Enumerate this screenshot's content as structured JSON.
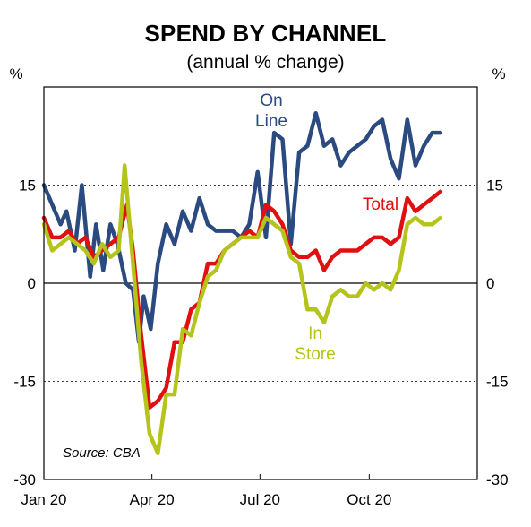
{
  "chart_data": {
    "type": "line",
    "title": "SPEND BY CHANNEL",
    "subtitle": "(annual % change)",
    "y_unit_left": "%",
    "y_unit_right": "%",
    "ylim": [
      -30,
      30
    ],
    "y_ticks": [
      15,
      0,
      -15,
      -30
    ],
    "y_tick_labels": [
      "15",
      "0",
      "-15",
      "-30"
    ],
    "x_range": [
      "2020-01-01",
      "2020-12-31"
    ],
    "x_ticks": [
      "2020-01-01",
      "2020-04-01",
      "2020-07-01",
      "2020-10-01"
    ],
    "x_tick_labels": [
      "Jan 20",
      "Apr 20",
      "Jul 20",
      "Oct 20"
    ],
    "source": "Source: CBA",
    "grid": "dotted horizontal",
    "series": [
      {
        "name": "On Line",
        "label_lines": [
          "On",
          "Line"
        ],
        "color": "#2a4a80",
        "points": [
          [
            "2020-01-01",
            15
          ],
          [
            "2020-01-08",
            12
          ],
          [
            "2020-01-15",
            9
          ],
          [
            "2020-01-20",
            11
          ],
          [
            "2020-01-27",
            5
          ],
          [
            "2020-02-02",
            15
          ],
          [
            "2020-02-09",
            1
          ],
          [
            "2020-02-14",
            9
          ],
          [
            "2020-02-20",
            2
          ],
          [
            "2020-02-26",
            9
          ],
          [
            "2020-03-03",
            6
          ],
          [
            "2020-03-10",
            0
          ],
          [
            "2020-03-16",
            -1
          ],
          [
            "2020-03-21",
            -9
          ],
          [
            "2020-03-25",
            -2
          ],
          [
            "2020-03-31",
            -7
          ],
          [
            "2020-04-06",
            3
          ],
          [
            "2020-04-13",
            9
          ],
          [
            "2020-04-20",
            6
          ],
          [
            "2020-04-27",
            11
          ],
          [
            "2020-05-04",
            8
          ],
          [
            "2020-05-11",
            13
          ],
          [
            "2020-05-18",
            9
          ],
          [
            "2020-05-25",
            8
          ],
          [
            "2020-06-01",
            8
          ],
          [
            "2020-06-08",
            8
          ],
          [
            "2020-06-15",
            7
          ],
          [
            "2020-06-22",
            9
          ],
          [
            "2020-06-29",
            17
          ],
          [
            "2020-07-06",
            7
          ],
          [
            "2020-07-13",
            23
          ],
          [
            "2020-07-20",
            22
          ],
          [
            "2020-07-27",
            6
          ],
          [
            "2020-08-03",
            20
          ],
          [
            "2020-08-10",
            21
          ],
          [
            "2020-08-17",
            26
          ],
          [
            "2020-08-24",
            21
          ],
          [
            "2020-08-31",
            22
          ],
          [
            "2020-09-07",
            18
          ],
          [
            "2020-09-14",
            20
          ],
          [
            "2020-09-21",
            21
          ],
          [
            "2020-09-28",
            22
          ],
          [
            "2020-10-05",
            24
          ],
          [
            "2020-10-12",
            25
          ],
          [
            "2020-10-19",
            19
          ],
          [
            "2020-10-26",
            16
          ],
          [
            "2020-11-02",
            25
          ],
          [
            "2020-11-09",
            18
          ],
          [
            "2020-11-16",
            21
          ],
          [
            "2020-11-23",
            23
          ],
          [
            "2020-11-30",
            23
          ]
        ]
      },
      {
        "name": "Total",
        "label_lines": [
          "Total"
        ],
        "color": "#e01010",
        "points": [
          [
            "2020-01-01",
            10
          ],
          [
            "2020-01-08",
            7
          ],
          [
            "2020-01-15",
            7
          ],
          [
            "2020-01-22",
            8
          ],
          [
            "2020-01-29",
            6
          ],
          [
            "2020-02-05",
            7
          ],
          [
            "2020-02-12",
            4
          ],
          [
            "2020-02-19",
            5
          ],
          [
            "2020-02-26",
            6
          ],
          [
            "2020-03-04",
            7
          ],
          [
            "2020-03-11",
            12
          ],
          [
            "2020-03-16",
            5
          ],
          [
            "2020-03-23",
            -8
          ],
          [
            "2020-03-30",
            -19
          ],
          [
            "2020-04-06",
            -18
          ],
          [
            "2020-04-13",
            -16
          ],
          [
            "2020-04-20",
            -9
          ],
          [
            "2020-04-27",
            -9
          ],
          [
            "2020-05-04",
            -4
          ],
          [
            "2020-05-11",
            -3
          ],
          [
            "2020-05-18",
            3
          ],
          [
            "2020-05-25",
            3
          ],
          [
            "2020-06-01",
            5
          ],
          [
            "2020-06-08",
            6
          ],
          [
            "2020-06-15",
            7
          ],
          [
            "2020-06-22",
            8
          ],
          [
            "2020-06-29",
            7
          ],
          [
            "2020-07-06",
            12
          ],
          [
            "2020-07-13",
            11
          ],
          [
            "2020-07-20",
            9
          ],
          [
            "2020-07-27",
            5
          ],
          [
            "2020-08-03",
            4
          ],
          [
            "2020-08-10",
            4
          ],
          [
            "2020-08-17",
            5
          ],
          [
            "2020-08-24",
            2
          ],
          [
            "2020-08-31",
            4
          ],
          [
            "2020-09-07",
            5
          ],
          [
            "2020-09-14",
            5
          ],
          [
            "2020-09-21",
            5
          ],
          [
            "2020-09-28",
            6
          ],
          [
            "2020-10-05",
            7
          ],
          [
            "2020-10-12",
            7
          ],
          [
            "2020-10-19",
            6
          ],
          [
            "2020-10-26",
            7
          ],
          [
            "2020-11-02",
            13
          ],
          [
            "2020-11-09",
            11
          ],
          [
            "2020-11-16",
            12
          ],
          [
            "2020-11-23",
            13
          ],
          [
            "2020-11-30",
            14
          ]
        ]
      },
      {
        "name": "In Store",
        "label_lines": [
          "In",
          "Store"
        ],
        "color": "#b5c41a",
        "points": [
          [
            "2020-01-01",
            9
          ],
          [
            "2020-01-08",
            5
          ],
          [
            "2020-01-15",
            6
          ],
          [
            "2020-01-22",
            7
          ],
          [
            "2020-01-29",
            6
          ],
          [
            "2020-02-05",
            5
          ],
          [
            "2020-02-12",
            3
          ],
          [
            "2020-02-19",
            6
          ],
          [
            "2020-02-26",
            4
          ],
          [
            "2020-03-04",
            5
          ],
          [
            "2020-03-09",
            18
          ],
          [
            "2020-03-16",
            3
          ],
          [
            "2020-03-23",
            -12
          ],
          [
            "2020-03-30",
            -23
          ],
          [
            "2020-04-06",
            -26
          ],
          [
            "2020-04-13",
            -17
          ],
          [
            "2020-04-20",
            -17
          ],
          [
            "2020-04-27",
            -7
          ],
          [
            "2020-05-04",
            -8
          ],
          [
            "2020-05-11",
            -3
          ],
          [
            "2020-05-18",
            1
          ],
          [
            "2020-05-25",
            2
          ],
          [
            "2020-06-01",
            5
          ],
          [
            "2020-06-08",
            6
          ],
          [
            "2020-06-15",
            7
          ],
          [
            "2020-06-22",
            7
          ],
          [
            "2020-06-29",
            7
          ],
          [
            "2020-07-06",
            10
          ],
          [
            "2020-07-13",
            9
          ],
          [
            "2020-07-20",
            8
          ],
          [
            "2020-07-27",
            4
          ],
          [
            "2020-08-03",
            3
          ],
          [
            "2020-08-10",
            -4
          ],
          [
            "2020-08-17",
            -4
          ],
          [
            "2020-08-24",
            -6
          ],
          [
            "2020-08-31",
            -2
          ],
          [
            "2020-09-07",
            -1
          ],
          [
            "2020-09-14",
            -2
          ],
          [
            "2020-09-21",
            -2
          ],
          [
            "2020-09-28",
            0
          ],
          [
            "2020-10-05",
            -1
          ],
          [
            "2020-10-12",
            0
          ],
          [
            "2020-10-19",
            -1
          ],
          [
            "2020-10-26",
            2
          ],
          [
            "2020-11-02",
            9
          ],
          [
            "2020-11-09",
            10
          ],
          [
            "2020-11-16",
            9
          ],
          [
            "2020-11-23",
            9
          ],
          [
            "2020-11-30",
            10
          ]
        ]
      }
    ]
  }
}
